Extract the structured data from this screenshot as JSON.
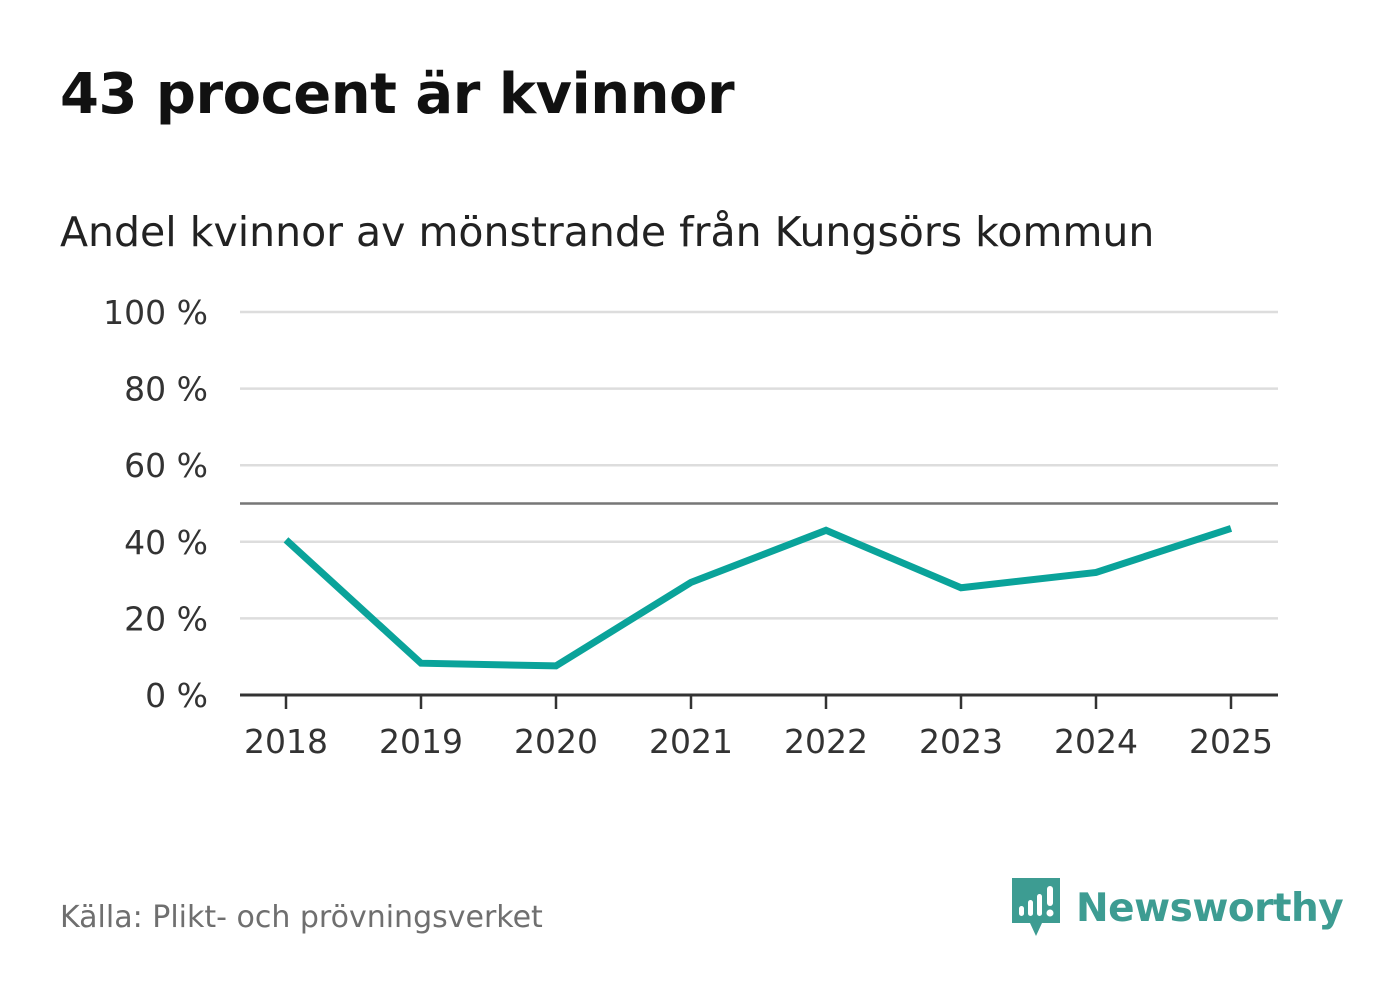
{
  "title": "43 procent är kvinnor",
  "subtitle": "Andel kvinnor av mönstrande från Kungsörs kommun",
  "source": "Källa: Plikt- och prövningsverket",
  "brand": {
    "name": "Newsworthy",
    "icon": "newsworthy-logo-icon",
    "color": "#3d9c92"
  },
  "colors": {
    "series": "#0aa39a",
    "grid": "#dddddd",
    "reference": "#777777",
    "axis": "#333333"
  },
  "chart_data": {
    "type": "line",
    "title": "43 procent är kvinnor",
    "subtitle": "Andel kvinnor av mönstrande från Kungsörs kommun",
    "xlabel": "",
    "ylabel": "",
    "categories": [
      "2018",
      "2019",
      "2020",
      "2021",
      "2022",
      "2023",
      "2024",
      "2025"
    ],
    "series": [
      {
        "name": "Andel kvinnor",
        "values": [
          40.5,
          8.3,
          7.6,
          29.4,
          43.0,
          28.0,
          32.0,
          43.5
        ]
      }
    ],
    "ylim": [
      0,
      100
    ],
    "yticks": [
      0,
      20,
      40,
      60,
      80,
      100
    ],
    "ytick_labels": [
      "0 %",
      "20 %",
      "40 %",
      "60 %",
      "80 %",
      "100 %"
    ],
    "reference_line": 50,
    "grid": true,
    "legend": "none"
  }
}
